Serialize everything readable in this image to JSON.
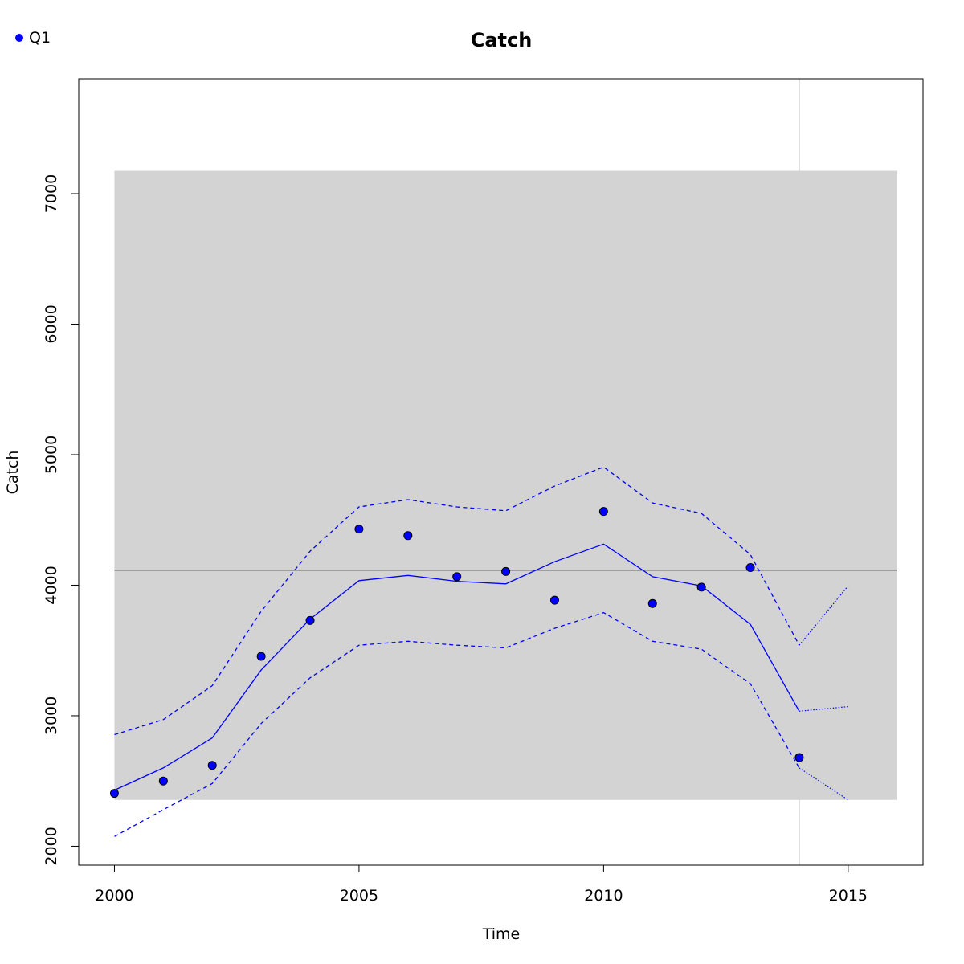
{
  "chart_data": {
    "type": "line",
    "title": "Catch",
    "xlabel": "Time",
    "ylabel": "Catch",
    "xlim": [
      1999.27,
      2016.53
    ],
    "ylim": [
      1855,
      7880
    ],
    "x_ticks": [
      2000,
      2005,
      2010,
      2015
    ],
    "y_ticks": [
      2000,
      3000,
      4000,
      5000,
      6000,
      7000
    ],
    "grid": false,
    "legend": {
      "position": "top-left",
      "entries": [
        {
          "label": "Q1",
          "color": "#0000ff",
          "marker": "point"
        }
      ]
    },
    "band": {
      "x": [
        2000,
        2016
      ],
      "y": [
        2355,
        7175
      ],
      "color": "#d3d3d3"
    },
    "reference_line": {
      "y": 4115,
      "color": "#000000"
    },
    "vertical_line": {
      "x": 2014,
      "color": "#d3d3d3"
    },
    "series": [
      {
        "name": "Q1",
        "kind": "points",
        "color": "#0000ff",
        "x": [
          2000,
          2001,
          2002,
          2003,
          2004,
          2005,
          2006,
          2007,
          2008,
          2009,
          2010,
          2011,
          2012,
          2013,
          2014
        ],
        "y": [
          2405,
          2500,
          2620,
          3455,
          3730,
          4430,
          4380,
          4065,
          4105,
          3885,
          4565,
          3860,
          3985,
          4135,
          2680
        ]
      },
      {
        "kind": "fit",
        "color": "#0000ff",
        "style": "solid",
        "x": [
          2000,
          2001,
          2002,
          2003,
          2004,
          2005,
          2006,
          2007,
          2008,
          2009,
          2010,
          2011,
          2012,
          2013,
          2014
        ],
        "y": [
          2430,
          2600,
          2830,
          3350,
          3740,
          4035,
          4075,
          4030,
          4010,
          4180,
          4315,
          4065,
          3995,
          3700,
          3035
        ]
      },
      {
        "kind": "upper",
        "color": "#0000ff",
        "style": "dashed",
        "x": [
          2000,
          2001,
          2002,
          2003,
          2004,
          2005,
          2006,
          2007,
          2008,
          2009,
          2010,
          2011,
          2012,
          2013,
          2014
        ],
        "y": [
          2855,
          2970,
          3230,
          3800,
          4260,
          4600,
          4655,
          4600,
          4570,
          4760,
          4905,
          4630,
          4550,
          4235,
          3540
        ]
      },
      {
        "kind": "lower",
        "color": "#0000ff",
        "style": "dashed",
        "x": [
          2000,
          2001,
          2002,
          2003,
          2004,
          2005,
          2006,
          2007,
          2008,
          2009,
          2010,
          2011,
          2012,
          2013,
          2014
        ],
        "y": [
          2075,
          2280,
          2480,
          2940,
          3290,
          3540,
          3570,
          3540,
          3520,
          3670,
          3790,
          3570,
          3510,
          3245,
          2600
        ]
      },
      {
        "kind": "forecast-fit",
        "color": "#0000ff",
        "style": "dotted",
        "x": [
          2014,
          2015
        ],
        "y": [
          3035,
          3070
        ]
      },
      {
        "kind": "forecast-upper",
        "color": "#0000ff",
        "style": "dotted",
        "x": [
          2014,
          2015
        ],
        "y": [
          3540,
          3995
        ]
      },
      {
        "kind": "forecast-lower",
        "color": "#0000ff",
        "style": "dotted",
        "x": [
          2014,
          2015
        ],
        "y": [
          2600,
          2355
        ]
      }
    ]
  }
}
